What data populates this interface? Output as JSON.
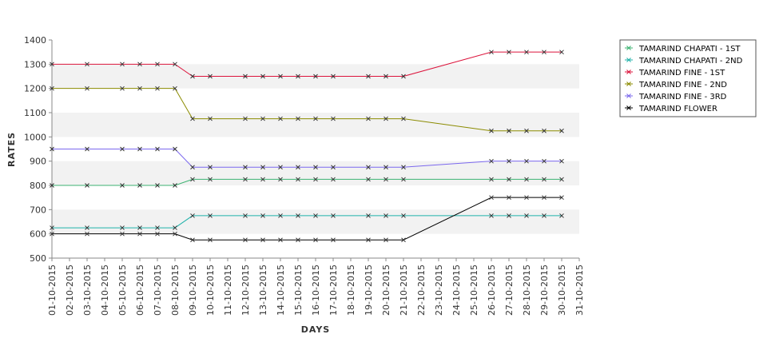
{
  "chart_data": {
    "type": "line",
    "xlabel": "DAYS",
    "ylabel": "RATES",
    "ylim": [
      500,
      1400
    ],
    "yticks": [
      500,
      600,
      700,
      800,
      900,
      1000,
      1100,
      1200,
      1300,
      1400
    ],
    "grid": "alternating horizontal bands",
    "legend_position": "top-right",
    "x_ticks": [
      "01-10-2015",
      "02-10-2015",
      "03-10-2015",
      "04-10-2015",
      "05-10-2015",
      "06-10-2015",
      "07-10-2015",
      "08-10-2015",
      "09-10-2015",
      "10-10-2015",
      "11-10-2015",
      "12-10-2015",
      "13-10-2015",
      "14-10-2015",
      "15-10-2015",
      "16-10-2015",
      "17-10-2015",
      "18-10-2015",
      "19-10-2015",
      "20-10-2015",
      "21-10-2015",
      "22-10-2015",
      "23-10-2015",
      "24-10-2015",
      "25-10-2015",
      "26-10-2015",
      "27-10-2015",
      "28-10-2015",
      "29-10-2015",
      "30-10-2015",
      "31-10-2015"
    ],
    "x": [
      "01-10-2015",
      "03-10-2015",
      "05-10-2015",
      "06-10-2015",
      "07-10-2015",
      "08-10-2015",
      "09-10-2015",
      "10-10-2015",
      "12-10-2015",
      "13-10-2015",
      "14-10-2015",
      "15-10-2015",
      "16-10-2015",
      "17-10-2015",
      "19-10-2015",
      "20-10-2015",
      "21-10-2015",
      "26-10-2015",
      "27-10-2015",
      "28-10-2015",
      "29-10-2015",
      "30-10-2015"
    ],
    "series": [
      {
        "name": "TAMARIND CHAPATI - 1ST",
        "color": "#3cb371",
        "values": [
          800,
          800,
          800,
          800,
          800,
          800,
          825,
          825,
          825,
          825,
          825,
          825,
          825,
          825,
          825,
          825,
          825,
          825,
          825,
          825,
          825,
          825
        ]
      },
      {
        "name": "TAMARIND CHAPATI - 2ND",
        "color": "#20b2aa",
        "values": [
          625,
          625,
          625,
          625,
          625,
          625,
          675,
          675,
          675,
          675,
          675,
          675,
          675,
          675,
          675,
          675,
          675,
          675,
          675,
          675,
          675,
          675
        ]
      },
      {
        "name": "TAMARIND FINE - 1ST",
        "color": "#dc143c",
        "values": [
          1300,
          1300,
          1300,
          1300,
          1300,
          1300,
          1250,
          1250,
          1250,
          1250,
          1250,
          1250,
          1250,
          1250,
          1250,
          1250,
          1250,
          1350,
          1350,
          1350,
          1350,
          1350
        ]
      },
      {
        "name": "TAMARIND FINE - 2ND",
        "color": "#8b8b00",
        "values": [
          1200,
          1200,
          1200,
          1200,
          1200,
          1200,
          1075,
          1075,
          1075,
          1075,
          1075,
          1075,
          1075,
          1075,
          1075,
          1075,
          1075,
          1025,
          1025,
          1025,
          1025,
          1025
        ]
      },
      {
        "name": "TAMARIND FINE - 3RD",
        "color": "#7b68ee",
        "values": [
          950,
          950,
          950,
          950,
          950,
          950,
          875,
          875,
          875,
          875,
          875,
          875,
          875,
          875,
          875,
          875,
          875,
          900,
          900,
          900,
          900,
          900
        ]
      },
      {
        "name": "TAMARIND FLOWER",
        "color": "#000000",
        "values": [
          600,
          600,
          600,
          600,
          600,
          600,
          575,
          575,
          575,
          575,
          575,
          575,
          575,
          575,
          575,
          575,
          575,
          750,
          750,
          750,
          750,
          750
        ]
      }
    ]
  }
}
